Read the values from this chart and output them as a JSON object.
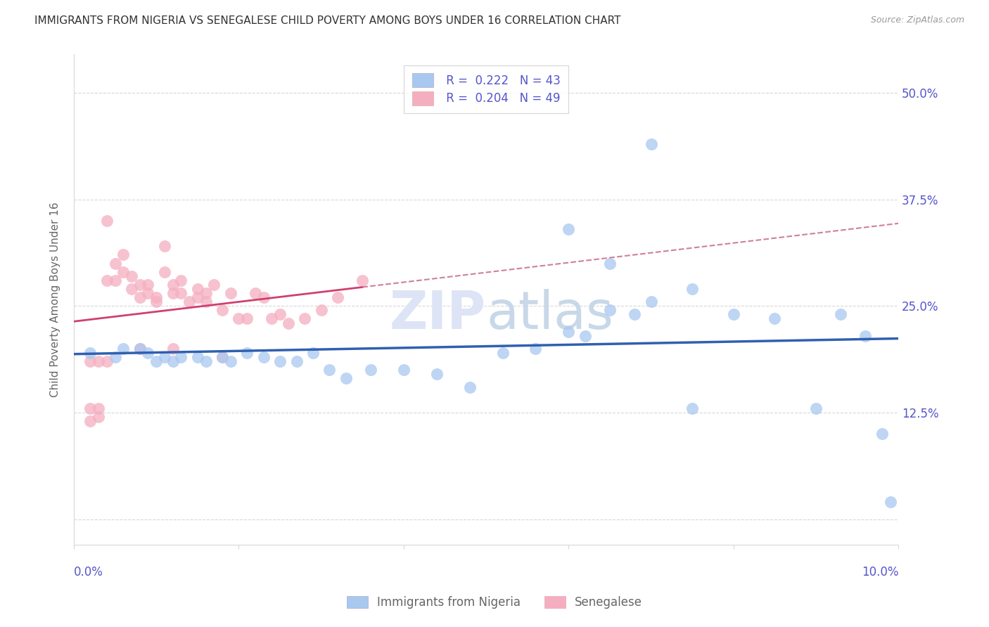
{
  "title": "IMMIGRANTS FROM NIGERIA VS SENEGALESE CHILD POVERTY AMONG BOYS UNDER 16 CORRELATION CHART",
  "source": "Source: ZipAtlas.com",
  "ylabel": "Child Poverty Among Boys Under 16",
  "ytick_vals": [
    0.0,
    0.125,
    0.25,
    0.375,
    0.5
  ],
  "ytick_labels": [
    "",
    "12.5%",
    "25.0%",
    "37.5%",
    "50.0%"
  ],
  "xmin": 0.0,
  "xmax": 0.1,
  "ymin": -0.03,
  "ymax": 0.545,
  "legend_line1": "R =  0.222   N = 43",
  "legend_line2": "R =  0.204   N = 49",
  "nigeria_color": "#a8c8f0",
  "senegal_color": "#f5aec0",
  "nigeria_line_color": "#3060b0",
  "senegal_line_color": "#d04070",
  "senegal_dash_color": "#d08098",
  "axis_label_color": "#5555cc",
  "grid_color": "#d8d8d8",
  "background_color": "#ffffff",
  "nigeria_x": [
    0.002,
    0.004,
    0.005,
    0.006,
    0.008,
    0.009,
    0.01,
    0.011,
    0.012,
    0.013,
    0.014,
    0.015,
    0.016,
    0.018,
    0.02,
    0.021,
    0.023,
    0.025,
    0.027,
    0.03,
    0.032,
    0.035,
    0.038,
    0.042,
    0.045,
    0.05,
    0.055,
    0.06,
    0.065,
    0.07,
    0.075,
    0.08,
    0.083,
    0.086,
    0.09,
    0.093,
    0.095,
    0.097,
    0.098,
    0.099,
    0.06,
    0.065,
    0.068
  ],
  "nigeria_y": [
    0.195,
    0.185,
    0.2,
    0.195,
    0.2,
    0.195,
    0.185,
    0.19,
    0.185,
    0.19,
    0.19,
    0.185,
    0.2,
    0.185,
    0.19,
    0.195,
    0.185,
    0.185,
    0.195,
    0.175,
    0.165,
    0.175,
    0.175,
    0.17,
    0.155,
    0.195,
    0.2,
    0.22,
    0.215,
    0.245,
    0.24,
    0.255,
    0.13,
    0.2,
    0.13,
    0.24,
    0.235,
    0.215,
    0.1,
    0.02,
    0.34,
    0.3,
    0.27
  ],
  "senegal_x": [
    0.002,
    0.003,
    0.003,
    0.004,
    0.005,
    0.005,
    0.006,
    0.006,
    0.007,
    0.007,
    0.008,
    0.008,
    0.009,
    0.009,
    0.01,
    0.01,
    0.011,
    0.011,
    0.012,
    0.012,
    0.013,
    0.013,
    0.014,
    0.015,
    0.015,
    0.016,
    0.016,
    0.017,
    0.018,
    0.019,
    0.02,
    0.021,
    0.022,
    0.023,
    0.024,
    0.025,
    0.025,
    0.026,
    0.028,
    0.03,
    0.032,
    0.035,
    0.028,
    0.018,
    0.012,
    0.008,
    0.004,
    0.003,
    0.002
  ],
  "senegal_y": [
    0.13,
    0.115,
    0.12,
    0.35,
    0.3,
    0.28,
    0.29,
    0.31,
    0.285,
    0.27,
    0.275,
    0.26,
    0.275,
    0.265,
    0.26,
    0.255,
    0.32,
    0.29,
    0.275,
    0.265,
    0.28,
    0.265,
    0.255,
    0.27,
    0.26,
    0.265,
    0.255,
    0.275,
    0.245,
    0.265,
    0.235,
    0.235,
    0.265,
    0.26,
    0.235,
    0.24,
    0.25,
    0.23,
    0.235,
    0.245,
    0.26,
    0.28,
    0.2,
    0.19,
    0.2,
    0.2,
    0.185,
    0.185,
    0.185
  ]
}
